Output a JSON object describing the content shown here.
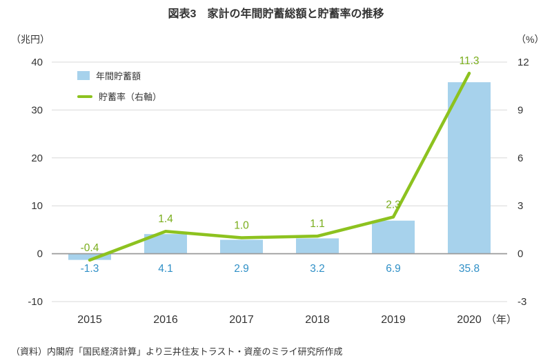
{
  "title": "図表3　家計の年間貯蓄総額と貯蓄率の推移",
  "footer": "（資料）内閣府「国民経済計算」より三井住友トラスト・資産のミライ研究所作成",
  "legend": {
    "bars": "年間貯蓄額",
    "line": "貯蓄率（右軸）"
  },
  "colors": {
    "bar": "#a7d2ec",
    "bar_label": "#3090c7",
    "line": "#8dc21f",
    "line_label": "#79ad1b",
    "grid": "#d8d8d8",
    "zero_line": "#9a9a9a",
    "text": "#333333"
  },
  "chart_data": {
    "type": "combo-bar-line",
    "categories": [
      "2015",
      "2016",
      "2017",
      "2018",
      "2019",
      "2020"
    ],
    "x_axis_suffix": "（年）",
    "series": [
      {
        "name": "年間貯蓄額",
        "type": "bar",
        "axis": "left",
        "values": [
          -1.3,
          4.1,
          2.9,
          3.2,
          6.9,
          35.8
        ]
      },
      {
        "name": "貯蓄率（右軸）",
        "type": "line",
        "axis": "right",
        "values": [
          -0.4,
          1.4,
          1.0,
          1.1,
          2.3,
          11.3
        ]
      }
    ],
    "left_axis": {
      "unit": "（兆円）",
      "range": [
        -10,
        40
      ],
      "ticks": [
        40,
        30,
        20,
        10,
        0,
        -10
      ]
    },
    "right_axis": {
      "unit": "（%）",
      "range": [
        -3,
        12
      ],
      "ticks": [
        12,
        9,
        6,
        3,
        0,
        -3
      ]
    },
    "grid": true,
    "legend_position": "top-left-inside"
  }
}
